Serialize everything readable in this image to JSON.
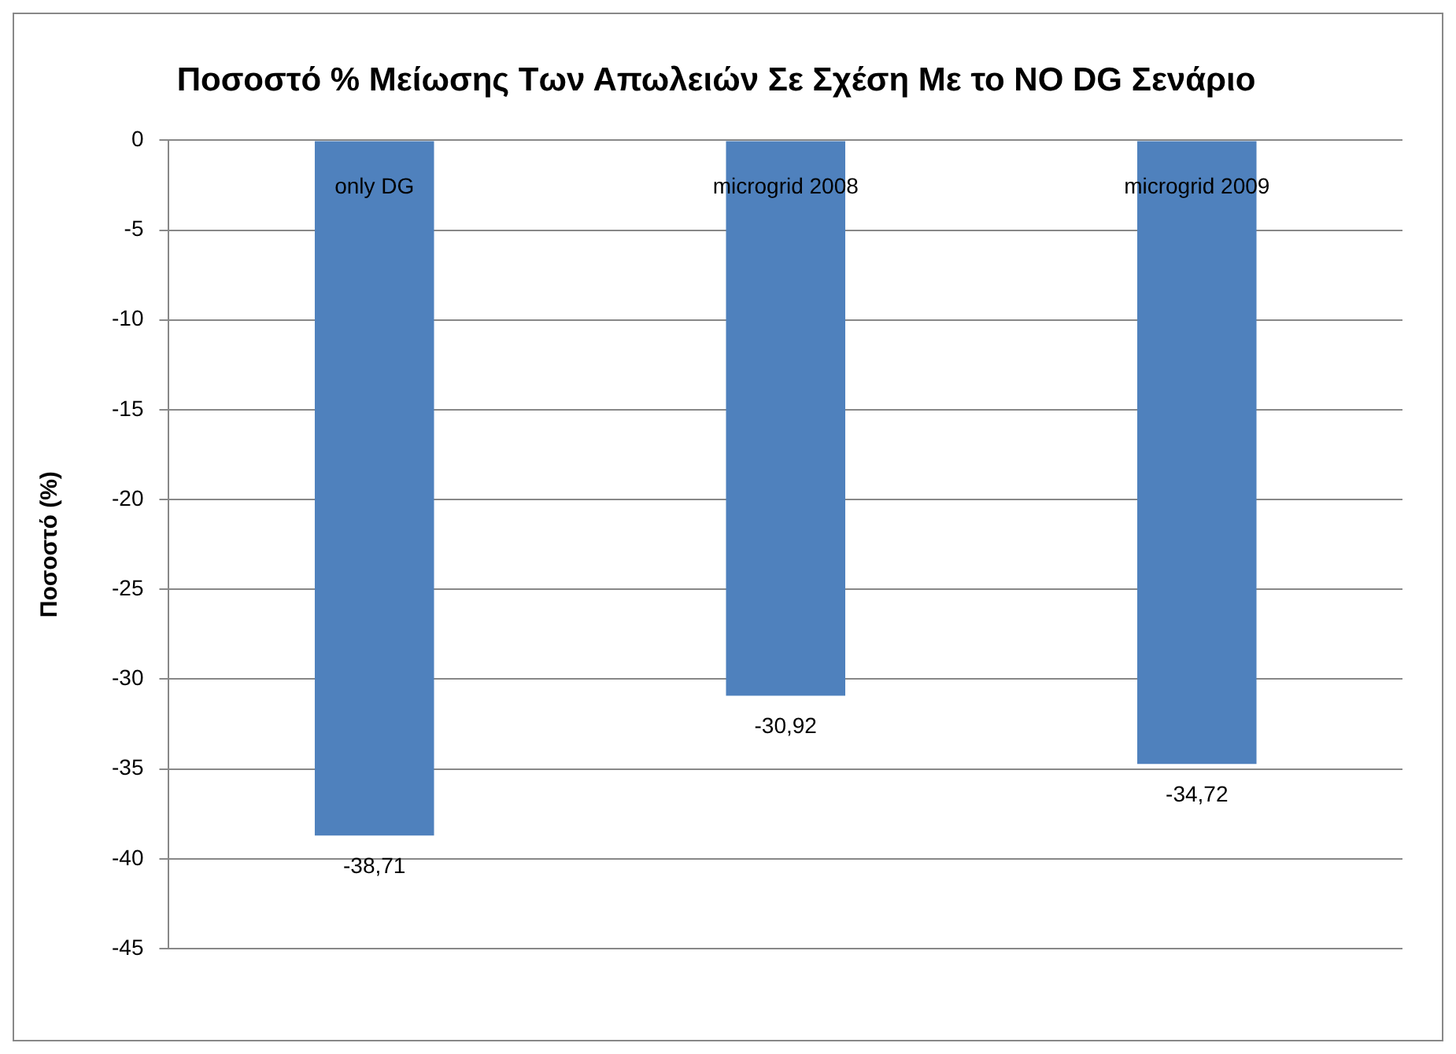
{
  "chart_data": {
    "type": "bar",
    "title": "Ποσοστό % Μείωσης Των Απωλειών Σε Σχέση Με το NO DG Σενάριο",
    "ylabel": "Ποσοστό (%)",
    "categories": [
      "only DG",
      "microgrid 2008",
      "microgrid 2009"
    ],
    "values": [
      -38.71,
      -30.92,
      -34.72
    ],
    "color": "#4f81bd",
    "value_labels": [
      "-38,71",
      "-30,92",
      "-34,72"
    ],
    "ylim": [
      -45,
      0
    ],
    "yticks": [
      0,
      -5,
      -10,
      -15,
      -20,
      -25,
      -30,
      -35,
      -40,
      -45
    ],
    "grid": "y",
    "legend": false
  }
}
